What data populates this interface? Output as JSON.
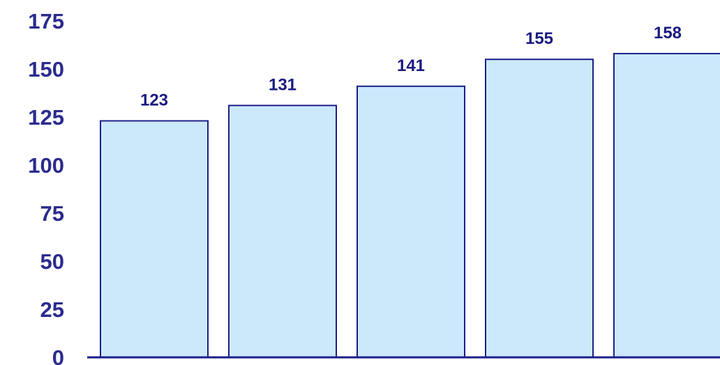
{
  "chart_data": {
    "type": "bar",
    "categories": [
      "",
      "",
      "",
      "",
      ""
    ],
    "values": [
      123,
      131,
      141,
      155,
      158
    ],
    "data_labels": [
      "123",
      "131",
      "141",
      "155",
      "158"
    ],
    "title": "",
    "xlabel": "",
    "ylabel": "",
    "ylim": [
      0,
      175
    ],
    "yticks": [
      "0",
      "25",
      "50",
      "75",
      "100",
      "125",
      "150",
      "175"
    ],
    "grid": false,
    "legend": "none",
    "colors": {
      "bar_fill": "#cce9fc",
      "bar_stroke": "#1b1f8a",
      "text": "#2b2b8f",
      "value_text": "#1a1a80",
      "axis": "#1b1f8a"
    }
  }
}
